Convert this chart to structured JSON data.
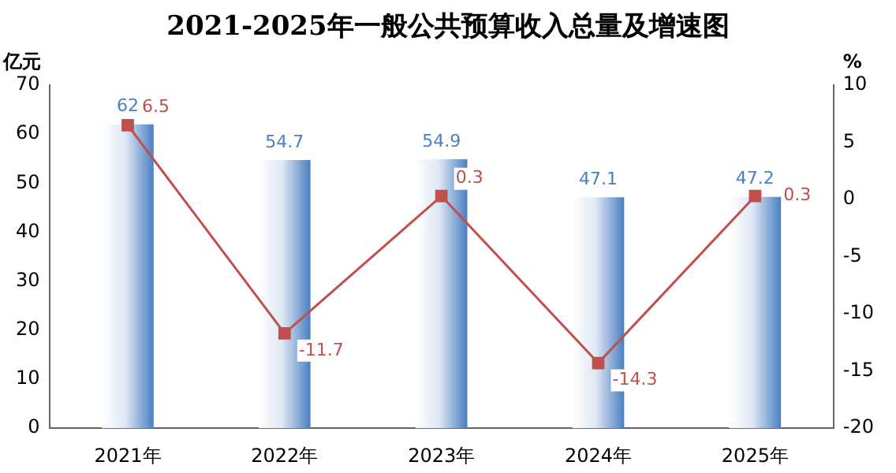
{
  "chart_data": {
    "type": "bar",
    "title": "2021-2025年一般公共预算收入总量及增速图",
    "ylabel": "亿元",
    "y2label": "%",
    "categories": [
      "2021年",
      "2022年",
      "2023年",
      "2024年",
      "2025年"
    ],
    "series": [
      {
        "color": "#4a7fc1",
        "values": [
          62,
          54.7,
          54.9,
          47.1,
          47.2
        ]
      },
      {
        "type": "line",
        "axis": "y2",
        "color": "#c0504d",
        "values": [
          6.5,
          -11.7,
          0.3,
          -14.3,
          0.3
        ]
      }
    ],
    "ylim": [
      0,
      70
    ],
    "yticks": [
      0,
      10,
      20,
      30,
      40,
      50,
      60,
      70
    ],
    "y2lim": [
      -20,
      10
    ],
    "y2ticks": [
      -20,
      -15,
      -10,
      -5,
      0,
      5,
      10
    ],
    "grid": false,
    "legend": false,
    "data_labels": true,
    "marker": "square",
    "line_style": "solid"
  }
}
